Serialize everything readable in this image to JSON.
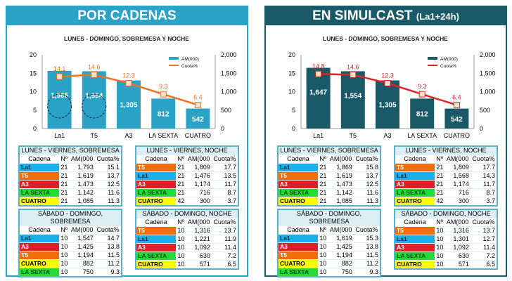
{
  "channel_colors": {
    "La1": "#1ab0ec",
    "T5": "#f26c0c",
    "A3": "#dd1f26",
    "LA SEXTA": "#22dd33",
    "CUATRO": "#ffff00"
  },
  "channel_text": {
    "La1": "#102a50",
    "T5": "#ffffff",
    "A3": "#ffffff",
    "LA SEXTA": "#0b4a10",
    "CUATRO": "#000000"
  },
  "panels": [
    {
      "title": "POR CADENAS",
      "subtitle": "",
      "header_color": "#2ba3c7",
      "chart_data": {
        "type": "bar",
        "title": "LUNES - DOMINGO, SOBREMESA Y NOCHE",
        "categories": [
          "La1",
          "T5",
          "A3",
          "LA SEXTA",
          "CUATRO"
        ],
        "series": [
          {
            "name": "AM(000)",
            "type": "bar",
            "axis": "right",
            "values": [
              1565,
              1554,
              1305,
              812,
              542
            ],
            "color": "#2ba3c7"
          },
          {
            "name": "Cuota%",
            "type": "line",
            "axis": "left",
            "values": [
              14.1,
              14.6,
              12.3,
              9.3,
              6.4
            ],
            "color": "#f07022"
          }
        ],
        "ylim_left": [
          0,
          20
        ],
        "yticks_left": [
          "0",
          "5",
          "10",
          "15",
          "20"
        ],
        "ylim_right": [
          0,
          2000
        ],
        "yticks_right": [
          "0",
          "500",
          "1,000",
          "1,500",
          "2,000"
        ],
        "bar_labels": [
          "1,565",
          "1,554",
          "1,305",
          "812",
          "542"
        ],
        "line_labels": [
          "14.1",
          "14.6",
          "12.3",
          "9.3",
          "6.4"
        ],
        "legend": "top-right",
        "highlighted": [
          "La1",
          "T5"
        ]
      },
      "tables": [
        {
          "title": "LUNES - VIERNES, SOBREMESA",
          "headers": [
            "Cadena",
            "Nº",
            "AM(000",
            "Cuota%"
          ],
          "rows": [
            [
              "La1",
              "21",
              "1,793",
              "15.1"
            ],
            [
              "T5",
              "21",
              "1,619",
              "13.7"
            ],
            [
              "A3",
              "21",
              "1,473",
              "12.5"
            ],
            [
              "LA SEXTA",
              "21",
              "1,142",
              "11.6"
            ],
            [
              "CUATRO",
              "21",
              "1,085",
              "11.3"
            ]
          ]
        },
        {
          "title": "LUNES - VIERNES, NOCHE",
          "headers": [
            "Cadena",
            "Nº",
            "AM(000",
            "Cuota%"
          ],
          "rows": [
            [
              "T5",
              "21",
              "1,809",
              "17.7"
            ],
            [
              "La1",
              "21",
              "1,476",
              "13.5"
            ],
            [
              "A3",
              "21",
              "1,174",
              "11.7"
            ],
            [
              "LA SEXTA",
              "21",
              "716",
              "8.7"
            ],
            [
              "CUATRO",
              "42",
              "300",
              "3.7"
            ]
          ]
        },
        {
          "title": "SÁBADO - DOMINGO, SOBREMESA",
          "headers": [
            "Cadena",
            "Nº",
            "AM(000",
            "Cuota%"
          ],
          "rows": [
            [
              "La1",
              "10",
              "1,547",
              "14.7"
            ],
            [
              "A3",
              "10",
              "1,425",
              "13.8"
            ],
            [
              "T5",
              "10",
              "1,194",
              "11.5"
            ],
            [
              "CUATRO",
              "10",
              "882",
              "11.2"
            ],
            [
              "LA SEXTA",
              "10",
              "750",
              "9.3"
            ]
          ]
        },
        {
          "title": "SÁBADO - DOMINGO, NOCHE",
          "headers": [
            "Cadena",
            "Nº",
            "AM(000",
            "Cuota%"
          ],
          "rows": [
            [
              "T5",
              "10",
              "1,316",
              "13.7"
            ],
            [
              "La1",
              "10",
              "1,221",
              "11.9"
            ],
            [
              "A3",
              "10",
              "1,092",
              "11.4"
            ],
            [
              "LA SEXTA",
              "10",
              "630",
              "7.2"
            ],
            [
              "CUATRO",
              "10",
              "571",
              "6.5"
            ]
          ]
        }
      ]
    },
    {
      "title": "EN SIMULCAST",
      "subtitle": "(La1+24h)",
      "header_color": "#1a5968",
      "chart_data": {
        "type": "bar",
        "title": "LUNES - DOMINGO, SOBREMESA Y NOCHE",
        "categories": [
          "La1",
          "T5",
          "A3",
          "LA SEXTA",
          "CUATRO"
        ],
        "series": [
          {
            "name": "AM(000)",
            "type": "bar",
            "axis": "right",
            "values": [
              1647,
              1554,
              1305,
              812,
              542
            ],
            "color": "#1a5968"
          },
          {
            "name": "Cuota%",
            "type": "line",
            "axis": "left",
            "values": [
              14.8,
              14.6,
              12.3,
              9.3,
              6.4
            ],
            "color": "#e02424"
          }
        ],
        "ylim_left": [
          0,
          20
        ],
        "yticks_left": [
          "0",
          "5",
          "10",
          "15",
          "20"
        ],
        "ylim_right": [
          0,
          2000
        ],
        "yticks_right": [
          "0",
          "500",
          "1,000",
          "1,500",
          "2,000"
        ],
        "bar_labels": [
          "1,647",
          "1,554",
          "1,305",
          "812",
          "542"
        ],
        "line_labels": [
          "14.8",
          "14.6",
          "12.3",
          "9.3",
          "6.4"
        ],
        "legend": "top-right"
      },
      "tables": [
        {
          "title": "LUNES - VIERNES, SOBREMESA",
          "headers": [
            "Cadena",
            "Nº",
            "AM(000",
            "Cuota%"
          ],
          "rows": [
            [
              "La1",
              "21",
              "1,869",
              "15.8"
            ],
            [
              "T5",
              "21",
              "1,619",
              "13.7"
            ],
            [
              "A3",
              "21",
              "1,473",
              "12.5"
            ],
            [
              "LA SEXTA",
              "21",
              "1,142",
              "11.6"
            ],
            [
              "CUATRO",
              "21",
              "1,085",
              "11.3"
            ]
          ]
        },
        {
          "title": "LUNES - VIERNES, NOCHE",
          "headers": [
            "Cadena",
            "Nº",
            "AM(000",
            "Cuota%"
          ],
          "rows": [
            [
              "T5",
              "21",
              "1,809",
              "17.7"
            ],
            [
              "La1",
              "21",
              "1,568",
              "14.3"
            ],
            [
              "A3",
              "21",
              "1,174",
              "11.7"
            ],
            [
              "LA SEXTA",
              "21",
              "716",
              "8.7"
            ],
            [
              "CUATRO",
              "42",
              "300",
              "3.7"
            ]
          ]
        },
        {
          "title": "SÁBADO - DOMINGO, SOBREMESA",
          "headers": [
            "Cadena",
            "Nº",
            "AM(000",
            "Cuota%"
          ],
          "rows": [
            [
              "La1",
              "10",
              "1,619",
              "15.3"
            ],
            [
              "A3",
              "10",
              "1,425",
              "13.8"
            ],
            [
              "T5",
              "10",
              "1,194",
              "11.5"
            ],
            [
              "CUATRO",
              "10",
              "882",
              "11.2"
            ],
            [
              "LA SEXTA",
              "10",
              "750",
              "9.3"
            ]
          ]
        },
        {
          "title": "SÁBADO - DOMINGO, NOCHE",
          "headers": [
            "Cadena",
            "Nº",
            "AM(000",
            "Cuota%"
          ],
          "rows": [
            [
              "T5",
              "10",
              "1,316",
              "13.7"
            ],
            [
              "La1",
              "10",
              "1,301",
              "12.7"
            ],
            [
              "A3",
              "10",
              "1,092",
              "11.4"
            ],
            [
              "LA SEXTA",
              "10",
              "630",
              "7.2"
            ],
            [
              "CUATRO",
              "10",
              "571",
              "6.5"
            ]
          ]
        }
      ]
    }
  ]
}
